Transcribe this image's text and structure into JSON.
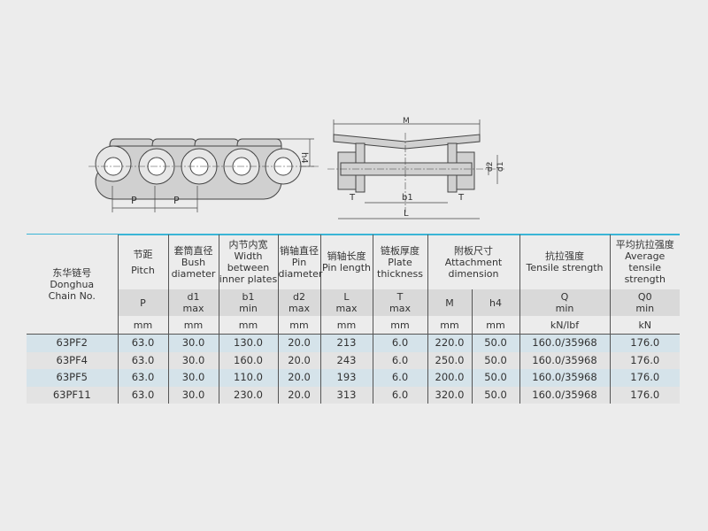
{
  "drawing_labels": {
    "pitch": "P",
    "height": "h4",
    "width_M": "M",
    "d2": "d2",
    "d1": "d1",
    "T": "T",
    "b1": "b1",
    "L": "L"
  },
  "table": {
    "chain_header": {
      "cn": "东华链号",
      "en1": "Donghua",
      "en2": "Chain No."
    },
    "columns": [
      {
        "cn": "节距",
        "en": "Pitch",
        "sym": "P",
        "sub": "",
        "unit": "mm"
      },
      {
        "cn": "套筒直径",
        "en": "Bush diameter",
        "sym": "d1",
        "sub": "max",
        "unit": "mm"
      },
      {
        "cn": "内节内宽",
        "en": "Width between inner plates",
        "sym": "b1",
        "sub": "min",
        "unit": "mm"
      },
      {
        "cn": "销轴直径",
        "en": "Pin diameter",
        "sym": "d2",
        "sub": "max",
        "unit": "mm"
      },
      {
        "cn": "销轴长度",
        "en": "Pin length",
        "sym": "L",
        "sub": "max",
        "unit": "mm"
      },
      {
        "cn": "链板厚度",
        "en": "Plate thickness",
        "sym": "T",
        "sub": "max",
        "unit": "mm"
      },
      {
        "cn": "附板尺寸",
        "en": "Attachment dimension",
        "sym": "M",
        "sym2": "h4",
        "unit": "mm",
        "unit2": "mm"
      },
      {
        "cn": "抗拉强度",
        "en": "Tensile strength",
        "sym": "Q",
        "sub": "min",
        "unit": "kN/lbf"
      },
      {
        "cn": "平均抗拉强度",
        "en": "Average tensile strength",
        "sym": "Q0",
        "sub": "min",
        "unit": "kN"
      }
    ],
    "rows": [
      [
        "63PF2",
        "63.0",
        "30.0",
        "130.0",
        "20.0",
        "213",
        "6.0",
        "220.0",
        "50.0",
        "160.0/35968",
        "176.0"
      ],
      [
        "63PF4",
        "63.0",
        "30.0",
        "160.0",
        "20.0",
        "243",
        "6.0",
        "250.0",
        "50.0",
        "160.0/35968",
        "176.0"
      ],
      [
        "63PF5",
        "63.0",
        "30.0",
        "110.0",
        "20.0",
        "193",
        "6.0",
        "200.0",
        "50.0",
        "160.0/35968",
        "176.0"
      ],
      [
        "63PF11",
        "63.0",
        "30.0",
        "230.0",
        "20.0",
        "313",
        "6.0",
        "320.0",
        "50.0",
        "160.0/35968",
        "176.0"
      ]
    ]
  }
}
